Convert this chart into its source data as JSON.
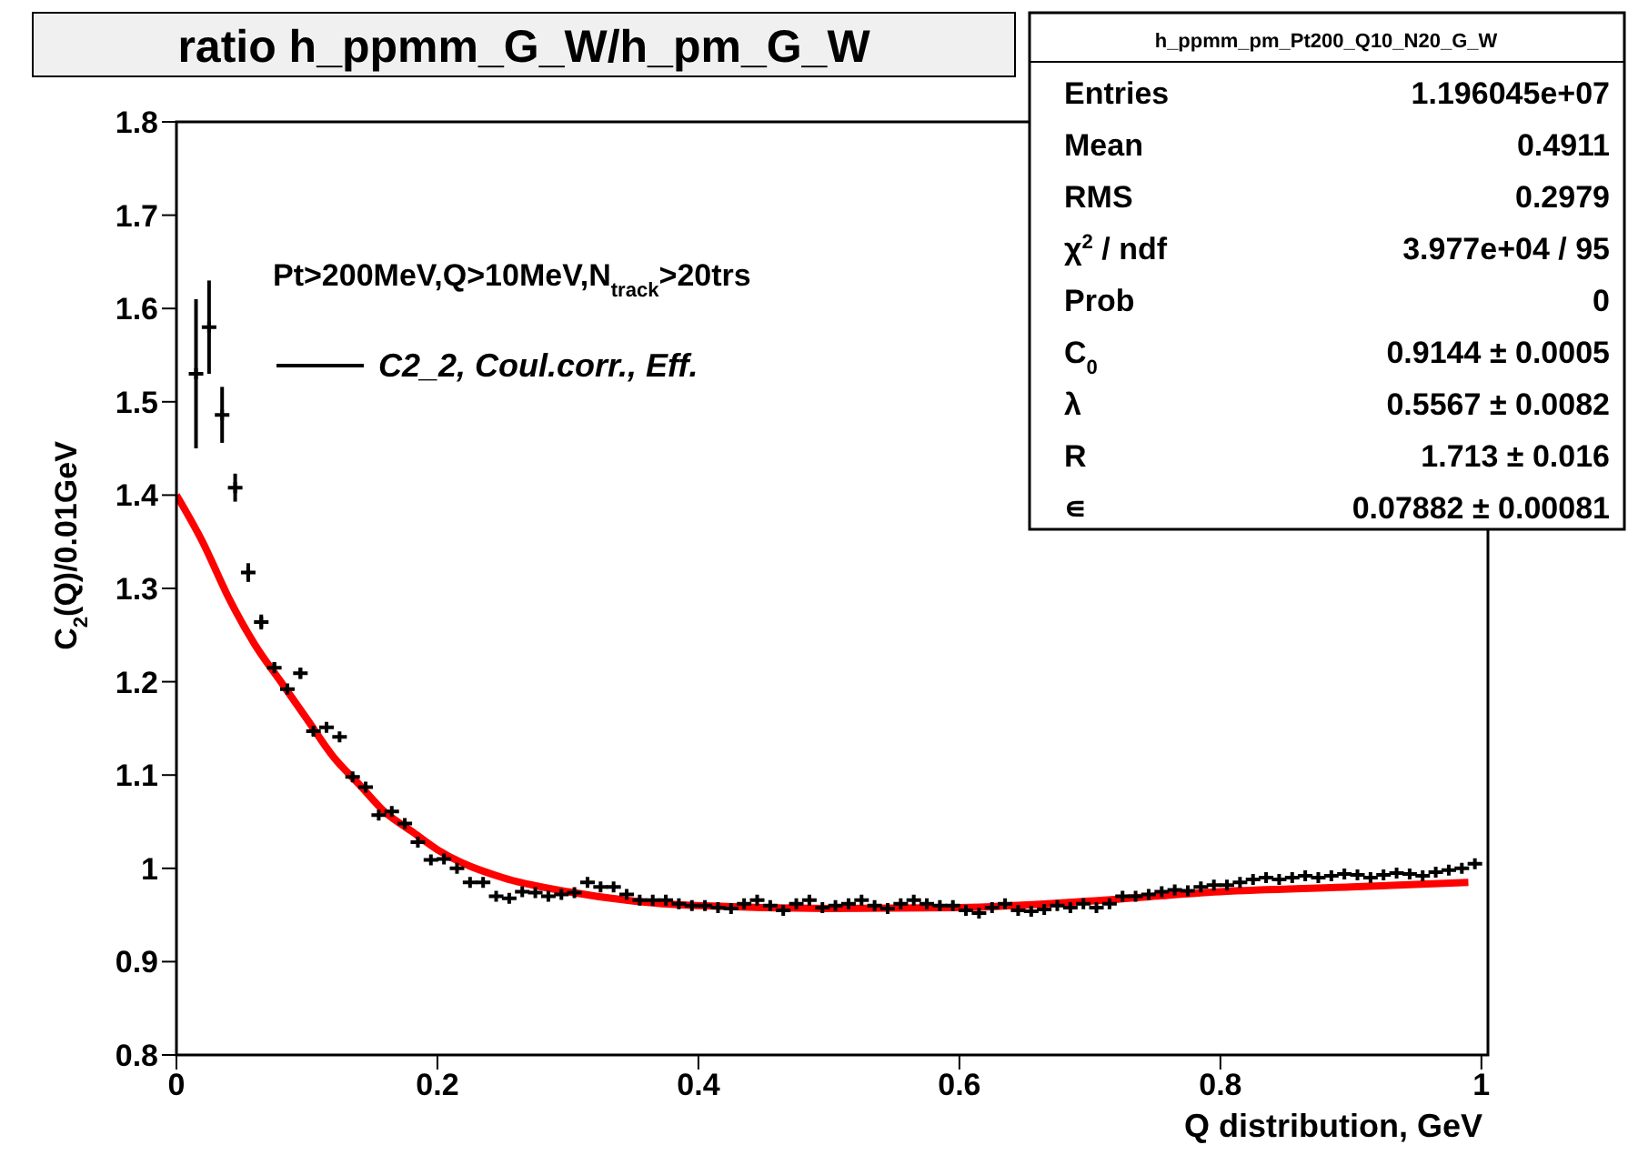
{
  "chart_data": {
    "type": "scatter",
    "title": "ratio h_ppmm_G_W/h_pm_G_W",
    "xlabel": "Q distribution, GeV",
    "ylabel": "C$_{2}$(Q)/0.01GeV",
    "annotations": [
      "Pt>200MeV,Q>10MeV,N$_{track}$>20trs",
      "h_ppmm_pm_Pt200_Q10_N20_G_W",
      "Entries\t1.196045e+07",
      "Mean\t0.4911",
      "RMS\t0.2979",
      "χ$^{2}$ / ndf\t3.977e+04 / 95",
      "Prob\t0",
      "C$_{0}$\t0.9144 ± 0.0005",
      "λ\t0.5567 ± 0.0082",
      "R\t1.713 ± 0.016",
      "∊\t0.07882 ± 0.00081"
    ],
    "xlim": [
      0,
      1.005
    ],
    "xticks": [
      0,
      0.2,
      0.4,
      0.6,
      0.8,
      1
    ],
    "ylim": [
      0.8,
      1.8
    ],
    "yticks": [
      0.8,
      0.9,
      1,
      1.1,
      1.2,
      1.3,
      1.4,
      1.5,
      1.6,
      1.7,
      1.8
    ],
    "legend": "top left",
    "series": [
      {
        "name": "C2_2, Coul.corr., Eff.",
        "color": "#000000",
        "marker": "cross",
        "x": [
          0.015,
          0.025,
          0.035,
          0.045,
          0.055,
          0.065,
          0.075,
          0.085,
          0.095,
          0.105,
          0.115,
          0.125,
          0.135,
          0.145,
          0.155,
          0.165,
          0.175,
          0.185,
          0.195,
          0.205,
          0.215,
          0.225,
          0.235,
          0.245,
          0.255,
          0.265,
          0.275,
          0.285,
          0.295,
          0.305,
          0.315,
          0.325,
          0.335,
          0.345,
          0.355,
          0.365,
          0.375,
          0.385,
          0.395,
          0.405,
          0.415,
          0.425,
          0.435,
          0.445,
          0.455,
          0.465,
          0.475,
          0.485,
          0.495,
          0.505,
          0.515,
          0.525,
          0.535,
          0.545,
          0.555,
          0.565,
          0.575,
          0.585,
          0.595,
          0.605,
          0.615,
          0.625,
          0.635,
          0.645,
          0.655,
          0.665,
          0.675,
          0.685,
          0.695,
          0.705,
          0.715,
          0.725,
          0.735,
          0.745,
          0.755,
          0.765,
          0.775,
          0.785,
          0.795,
          0.805,
          0.815,
          0.825,
          0.835,
          0.845,
          0.855,
          0.865,
          0.875,
          0.885,
          0.895,
          0.905,
          0.915,
          0.925,
          0.935,
          0.945,
          0.955,
          0.965,
          0.975,
          0.985,
          0.995
        ],
        "values": [
          1.53,
          1.58,
          1.486,
          1.408,
          1.317,
          1.264,
          1.215,
          1.192,
          1.209,
          1.147,
          1.151,
          1.141,
          1.098,
          1.087,
          1.057,
          1.061,
          1.048,
          1.028,
          1.009,
          1.01,
          1.0,
          0.985,
          0.985,
          0.97,
          0.968,
          0.975,
          0.974,
          0.97,
          0.972,
          0.974,
          0.985,
          0.98,
          0.98,
          0.972,
          0.966,
          0.966,
          0.966,
          0.962,
          0.96,
          0.96,
          0.958,
          0.957,
          0.962,
          0.966,
          0.96,
          0.955,
          0.962,
          0.966,
          0.958,
          0.96,
          0.962,
          0.966,
          0.96,
          0.957,
          0.962,
          0.966,
          0.962,
          0.96,
          0.96,
          0.955,
          0.952,
          0.958,
          0.962,
          0.955,
          0.954,
          0.956,
          0.96,
          0.958,
          0.962,
          0.958,
          0.962,
          0.97,
          0.97,
          0.972,
          0.975,
          0.977,
          0.976,
          0.98,
          0.982,
          0.982,
          0.985,
          0.988,
          0.99,
          0.988,
          0.99,
          0.992,
          0.99,
          0.992,
          0.994,
          0.993,
          0.99,
          0.993,
          0.995,
          0.994,
          0.992,
          0.996,
          0.998,
          1.0,
          1.005
        ],
        "errors": [
          0.08,
          0.05,
          0.03,
          0.015,
          0.01,
          0.008,
          0.006,
          0.006,
          0.006,
          0.005,
          null,
          null,
          null,
          null,
          null,
          null,
          null,
          null,
          null,
          null,
          null,
          null,
          null,
          null,
          null,
          null,
          null,
          null,
          null,
          null,
          null,
          null,
          null,
          null,
          null,
          null,
          null,
          null,
          null,
          null,
          null,
          null,
          null,
          null,
          null,
          null,
          null,
          null,
          null,
          null,
          null,
          null,
          null,
          null,
          null,
          null,
          null,
          null,
          null,
          null,
          null,
          null,
          null,
          null,
          null,
          null,
          null,
          null,
          null,
          null,
          null,
          null,
          null,
          null,
          null,
          null,
          null,
          null,
          null,
          null,
          null,
          null,
          null,
          null,
          null,
          null,
          null,
          null,
          null,
          null,
          null,
          null,
          null,
          null,
          null,
          null,
          null,
          null,
          null
        ]
      },
      {
        "type": "line",
        "color": "#ff0000",
        "x": [
          0,
          0.02,
          0.04,
          0.06,
          0.08,
          0.1,
          0.12,
          0.14,
          0.16,
          0.18,
          0.2,
          0.25,
          0.3,
          0.35,
          0.4,
          0.5,
          0.6,
          0.7,
          0.8,
          0.9,
          0.99
        ],
        "values": [
          1.4,
          1.35,
          1.29,
          1.24,
          1.2,
          1.16,
          1.12,
          1.09,
          1.06,
          1.04,
          1.02,
          0.99,
          0.975,
          0.965,
          0.96,
          0.957,
          0.958,
          0.965,
          0.975,
          0.98,
          0.985
        ]
      }
    ]
  }
}
